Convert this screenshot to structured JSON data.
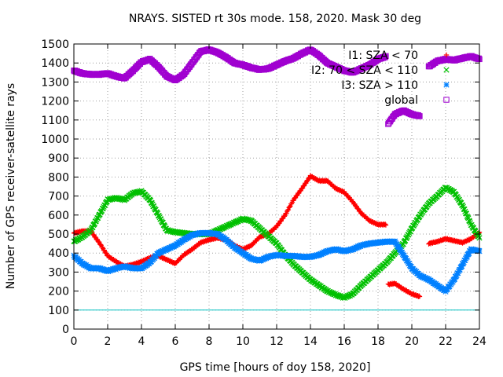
{
  "chart_data": {
    "type": "scatter",
    "title": "NRAYS. SISTED rt 30s mode. 158, 2020. Mask 30 deg",
    "xlabel": "GPS time [hours of doy 158, 2020]",
    "ylabel": "Number of GPS receiver-satellite rays",
    "xlim": [
      0,
      24
    ],
    "ylim": [
      0,
      1500
    ],
    "xticks": [
      0,
      2,
      4,
      6,
      8,
      10,
      12,
      14,
      16,
      18,
      20,
      22,
      24
    ],
    "yticks": [
      0,
      100,
      200,
      300,
      400,
      500,
      600,
      700,
      800,
      900,
      1000,
      1100,
      1200,
      1300,
      1400,
      1500
    ],
    "grid": true,
    "legend_position": "top-right",
    "reference_line": {
      "y": 100,
      "color": "#00c0c0"
    },
    "series": [
      {
        "name": "I1: SZA < 70",
        "marker": "+",
        "color": "#ff0000",
        "x": [
          0,
          0.5,
          1,
          1.5,
          2,
          2.5,
          3,
          3.5,
          4,
          4.5,
          5,
          5.5,
          6,
          6.5,
          7,
          7.5,
          8,
          8.5,
          9,
          9.5,
          10,
          10.5,
          11,
          11.5,
          12,
          12.5,
          13,
          13.5,
          14,
          14.5,
          15,
          15.5,
          16,
          16.5,
          17,
          17.5,
          18,
          18.5,
          18.6,
          19,
          19.5,
          20,
          20.5,
          21,
          21.5,
          22,
          22.5,
          23,
          23.5,
          24
        ],
        "y": [
          505,
          515,
          515,
          455,
          385,
          355,
          330,
          340,
          355,
          375,
          385,
          365,
          345,
          390,
          420,
          455,
          470,
          480,
          470,
          440,
          420,
          440,
          485,
          500,
          540,
          600,
          680,
          740,
          805,
          780,
          780,
          740,
          720,
          670,
          610,
          570,
          550,
          550,
          235,
          240,
          210,
          185,
          170,
          450,
          460,
          475,
          465,
          455,
          475,
          510
        ]
      },
      {
        "name": "I2: 70 < SZA < 110",
        "marker": "x",
        "color": "#00c000",
        "x": [
          0,
          0.5,
          1,
          1.5,
          2,
          2.5,
          3,
          3.5,
          4,
          4.5,
          5,
          5.5,
          6,
          6.5,
          7,
          7.5,
          8,
          8.5,
          9,
          9.5,
          10,
          10.5,
          11,
          11.5,
          12,
          12.5,
          13,
          13.5,
          14,
          14.5,
          15,
          15.5,
          16,
          16.5,
          17,
          17.5,
          18,
          18.5,
          19,
          19.5,
          20,
          20.5,
          21,
          21.5,
          22,
          22.5,
          23,
          23.5,
          24
        ],
        "y": [
          460,
          485,
          520,
          600,
          680,
          690,
          680,
          715,
          725,
          680,
          600,
          520,
          510,
          505,
          500,
          500,
          500,
          520,
          540,
          560,
          580,
          570,
          530,
          490,
          450,
          390,
          340,
          300,
          260,
          230,
          200,
          180,
          165,
          185,
          230,
          270,
          310,
          350,
          400,
          450,
          530,
          600,
          660,
          700,
          745,
          720,
          650,
          550,
          480
        ]
      },
      {
        "name": "I3: SZA > 110",
        "marker": "*",
        "color": "#0080ff",
        "x": [
          0,
          0.5,
          1,
          1.5,
          2,
          2.5,
          3,
          3.5,
          4,
          4.5,
          5,
          5.5,
          6,
          6.5,
          7,
          7.5,
          8,
          8.5,
          9,
          9.5,
          10,
          10.5,
          11,
          11.5,
          12,
          12.5,
          13,
          13.5,
          14,
          14.5,
          15,
          15.5,
          16,
          16.5,
          17,
          17.5,
          18,
          18.5,
          19,
          19.5,
          20,
          20.5,
          21,
          21.5,
          22,
          22.5,
          23,
          23.5,
          24
        ],
        "y": [
          385,
          345,
          320,
          320,
          305,
          320,
          330,
          320,
          320,
          350,
          400,
          420,
          440,
          470,
          495,
          505,
          505,
          500,
          470,
          430,
          400,
          370,
          360,
          380,
          390,
          385,
          385,
          380,
          380,
          390,
          410,
          420,
          410,
          420,
          440,
          450,
          455,
          460,
          460,
          390,
          320,
          280,
          260,
          230,
          200,
          260,
          340,
          420,
          410
        ]
      },
      {
        "name": "global",
        "marker": "square",
        "color": "#a000d0",
        "x": [
          0,
          0.5,
          1,
          1.5,
          2,
          2.5,
          3,
          3.5,
          4,
          4.5,
          5,
          5.5,
          6,
          6.5,
          7,
          7.5,
          8,
          8.5,
          9,
          9.5,
          10,
          10.5,
          11,
          11.5,
          12,
          12.5,
          13,
          13.5,
          14,
          14.5,
          15,
          15.5,
          16,
          16.5,
          17,
          17.5,
          18,
          18.5,
          18.6,
          19,
          19.5,
          20,
          20.5,
          21,
          21.5,
          22,
          22.5,
          23,
          23.5,
          24
        ],
        "y": [
          1360,
          1345,
          1340,
          1340,
          1345,
          1330,
          1320,
          1360,
          1405,
          1420,
          1380,
          1330,
          1310,
          1340,
          1400,
          1460,
          1470,
          1455,
          1430,
          1400,
          1390,
          1375,
          1365,
          1370,
          1390,
          1410,
          1425,
          1450,
          1470,
          1440,
          1400,
          1380,
          1360,
          1350,
          1370,
          1390,
          1420,
          1435,
          1080,
          1130,
          1150,
          1130,
          1120,
          1380,
          1410,
          1420,
          1415,
          1425,
          1435,
          1420
        ]
      }
    ]
  }
}
